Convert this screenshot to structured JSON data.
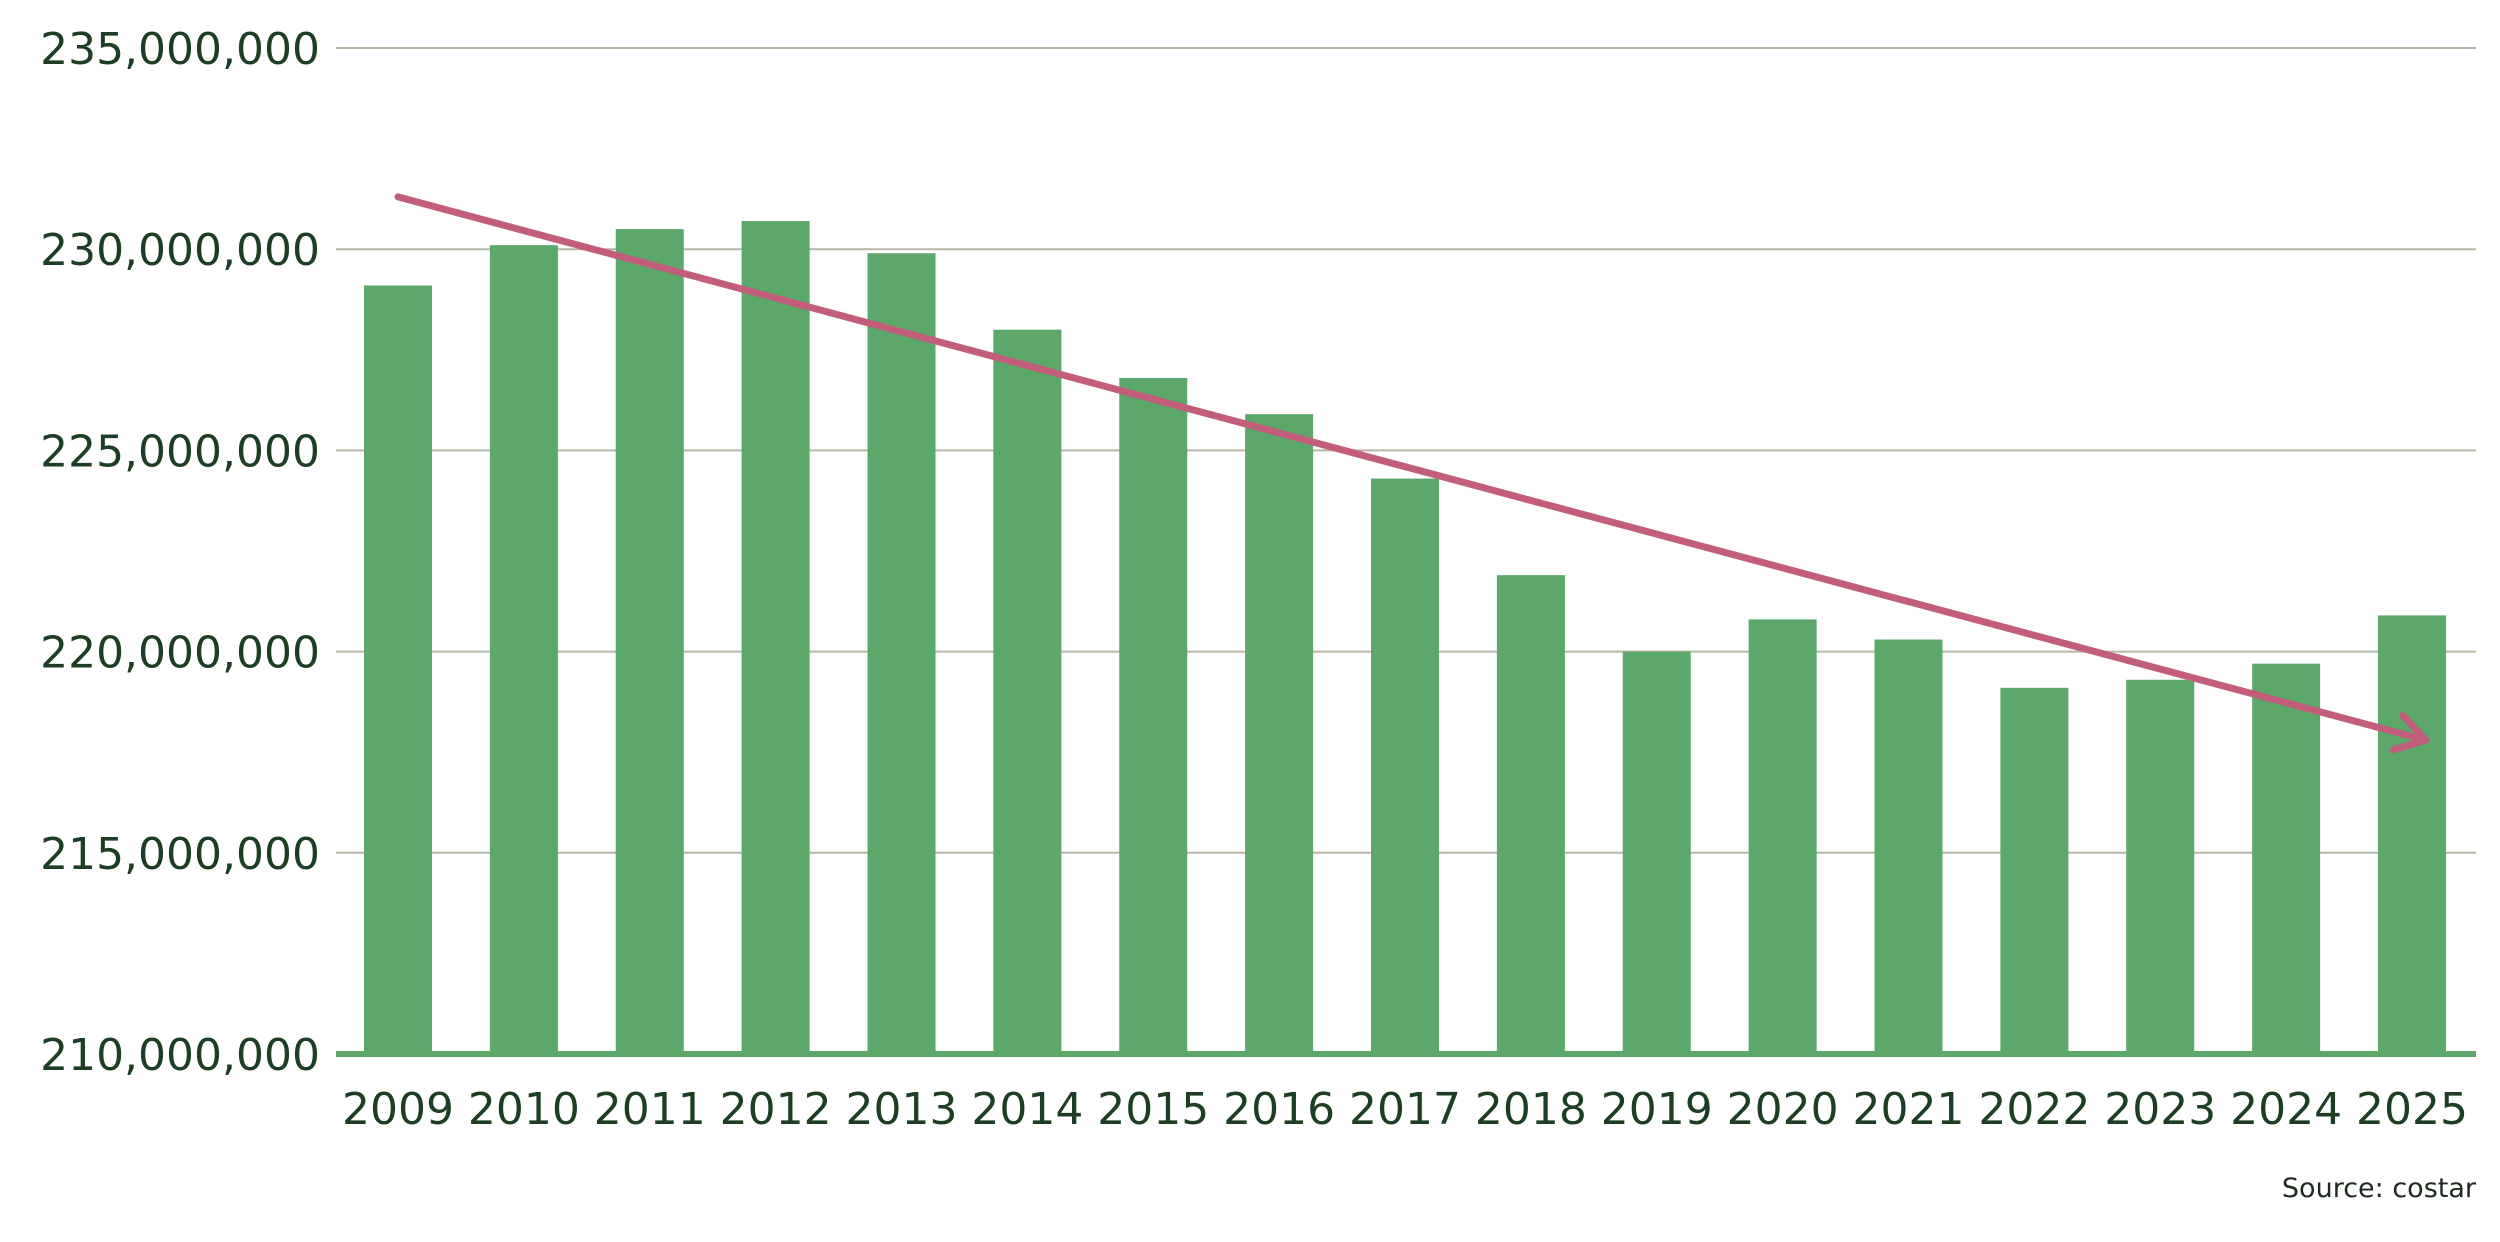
{
  "chart_data": {
    "type": "bar",
    "title": "",
    "xlabel": "",
    "ylabel": "",
    "categories": [
      "2009",
      "2010",
      "2011",
      "2012",
      "2013",
      "2014",
      "2015",
      "2016",
      "2017",
      "2018",
      "2019",
      "2020",
      "2021",
      "2022",
      "2023",
      "2024",
      "2025"
    ],
    "values": [
      229100000,
      230100000,
      230500000,
      230700000,
      229900000,
      228000000,
      226800000,
      225900000,
      224300000,
      221900000,
      220000000,
      220800000,
      220300000,
      219100000,
      219300000,
      219700000,
      220900000
    ],
    "ylim": [
      210000000,
      235000000
    ],
    "yticks": [
      210000000,
      215000000,
      220000000,
      225000000,
      230000000,
      235000000
    ],
    "ytick_labels": [
      "210,000,000",
      "215,000,000",
      "220,000,000",
      "225,000,000",
      "230,000,000",
      "235,000,000"
    ],
    "grid": true,
    "trend_arrow": {
      "start": {
        "x": "2009",
        "y": 231300000
      },
      "end": {
        "x": "2025",
        "y": 217800000
      }
    },
    "source": "Source: costar",
    "colors": {
      "bar": "#5ca86a",
      "trend": "#c25e7a",
      "grid": "#b9b6a6",
      "baseline": "#5ca86a",
      "text": "#1d3d24"
    }
  }
}
